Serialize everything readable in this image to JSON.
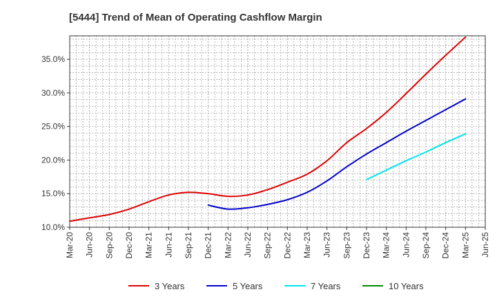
{
  "chart_data": {
    "type": "line",
    "title": "[5444]  Trend of Mean of Operating Cashflow Margin",
    "xlabel": "",
    "ylabel": "",
    "y_unit": "%",
    "ylim": [
      10.0,
      38.5
    ],
    "yticks": [
      10.0,
      15.0,
      20.0,
      25.0,
      30.0,
      35.0
    ],
    "ytick_labels": [
      "10.0%",
      "15.0%",
      "20.0%",
      "25.0%",
      "30.0%",
      "35.0%"
    ],
    "categories": [
      "Mar-20",
      "Jun-20",
      "Sep-20",
      "Dec-20",
      "Mar-21",
      "Jun-21",
      "Sep-21",
      "Dec-21",
      "Mar-22",
      "Jun-22",
      "Sep-22",
      "Dec-22",
      "Mar-23",
      "Jun-23",
      "Sep-23",
      "Dec-23",
      "Mar-24",
      "Jun-24",
      "Sep-24",
      "Dec-24",
      "Mar-25",
      "Jun-25"
    ],
    "grid": true,
    "legend_position": "bottom",
    "series": [
      {
        "name": "3 Years",
        "color": "#dd0000",
        "values": [
          10.9,
          11.4,
          11.9,
          12.7,
          13.8,
          14.8,
          15.2,
          15.0,
          14.6,
          14.8,
          15.6,
          16.7,
          17.9,
          19.9,
          22.6,
          24.7,
          27.1,
          29.9,
          32.8,
          35.6,
          38.3,
          null
        ]
      },
      {
        "name": "5 Years",
        "color": "#0000cc",
        "values": [
          null,
          null,
          null,
          null,
          null,
          null,
          null,
          13.3,
          12.7,
          12.9,
          13.4,
          14.1,
          15.2,
          16.9,
          19.0,
          20.9,
          22.6,
          24.3,
          25.9,
          27.5,
          29.1,
          null
        ]
      },
      {
        "name": "7 Years",
        "color": "#00e5ee",
        "values": [
          null,
          null,
          null,
          null,
          null,
          null,
          null,
          null,
          null,
          null,
          null,
          null,
          null,
          null,
          null,
          17.1,
          18.5,
          19.9,
          21.2,
          22.6,
          23.9,
          null
        ]
      },
      {
        "name": "10 Years",
        "color": "#008800",
        "values": [
          null,
          null,
          null,
          null,
          null,
          null,
          null,
          null,
          null,
          null,
          null,
          null,
          null,
          null,
          null,
          null,
          null,
          null,
          null,
          null,
          null,
          null
        ]
      }
    ]
  }
}
